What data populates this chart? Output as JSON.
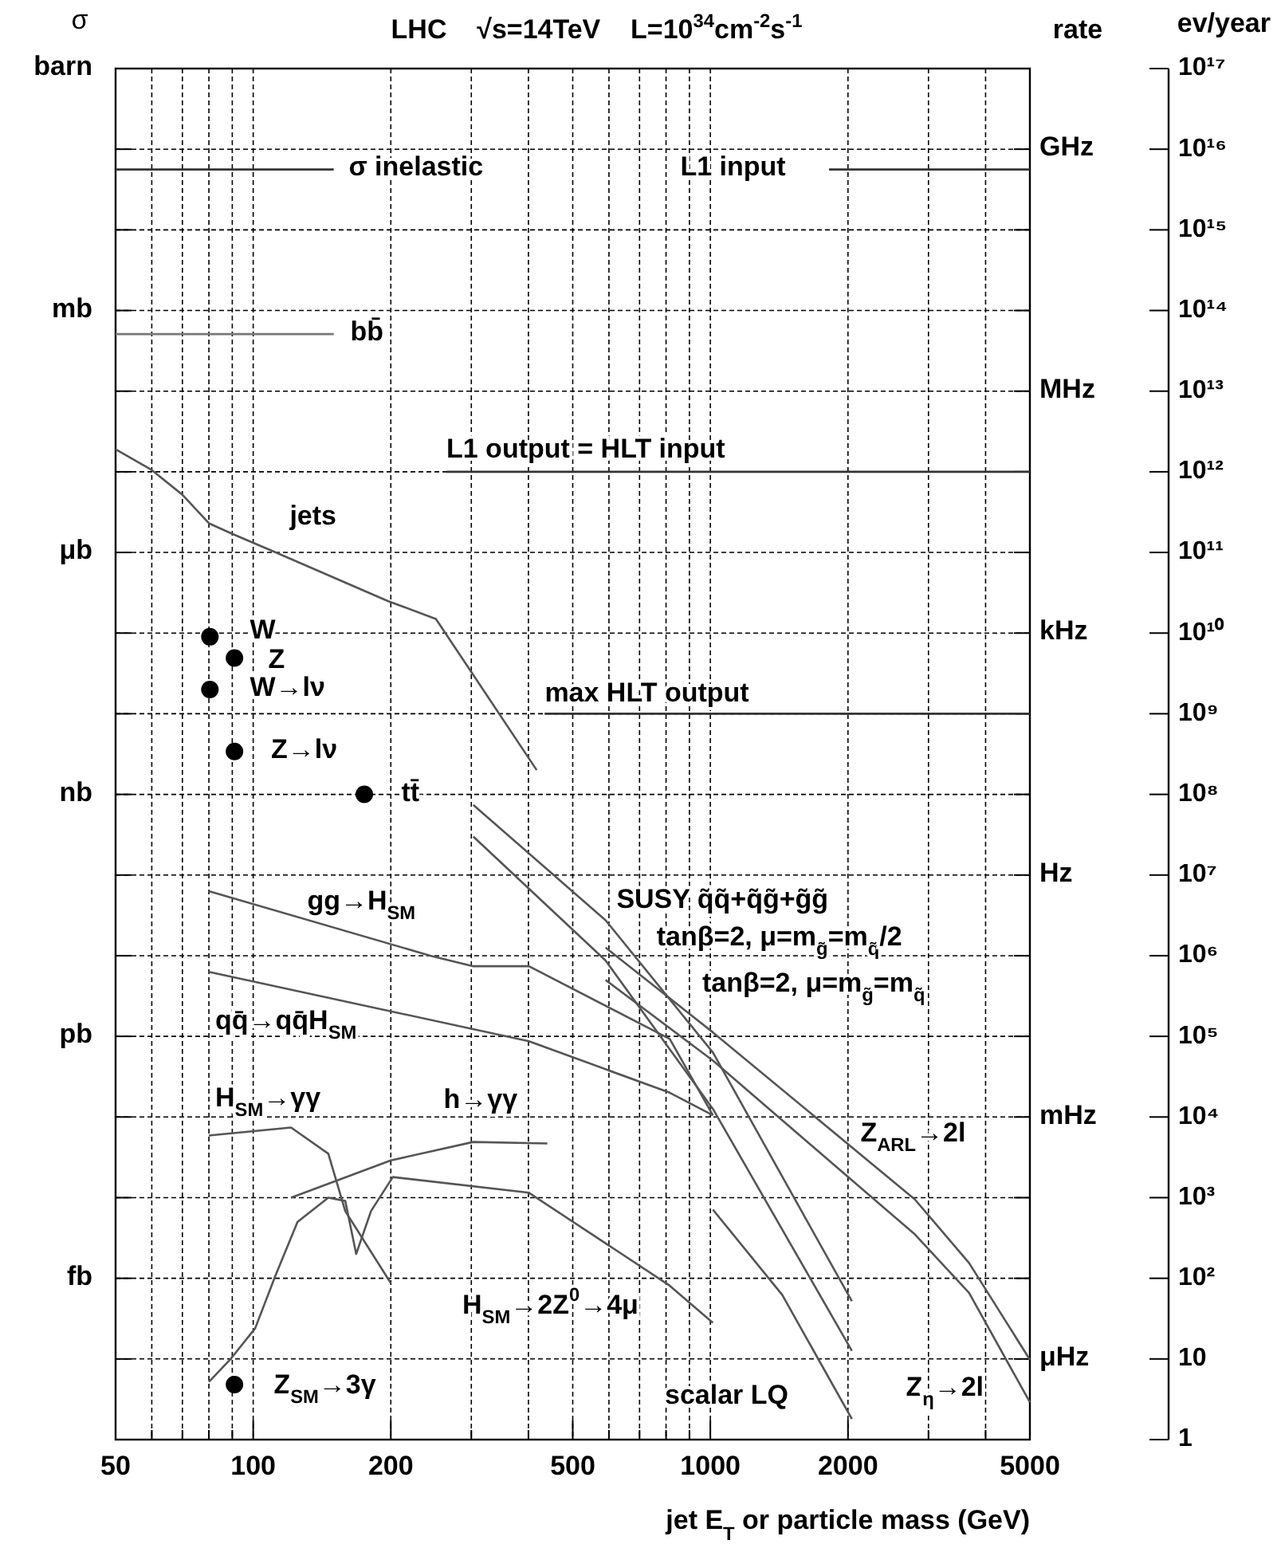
{
  "chart_data": {
    "type": "line",
    "title": "LHC    √s=14TeV    L=10$^{34}$cm$^{-2}$s$^{-1}$",
    "ylabel": "ev/year",
    "xlabel": "jet E$_{T}$ or particle mass (GeV)",
    "log": "xy",
    "grid": true,
    "xlim": [
      50,
      5000
    ],
    "xticks": [
      50,
      {
        "value": 60,
        "label": null
      },
      {
        "value": 70,
        "label": null
      },
      {
        "value": 80,
        "label": null
      },
      {
        "value": 90,
        "label": null
      },
      100,
      200,
      {
        "value": 300,
        "label": null
      },
      {
        "value": 400,
        "label": null
      },
      500,
      {
        "value": 600,
        "label": null
      },
      {
        "value": 700,
        "label": null
      },
      {
        "value": 800,
        "label": null
      },
      {
        "value": 900,
        "label": null
      },
      1000,
      2000,
      {
        "value": 3000,
        "label": null
      },
      {
        "value": 4000,
        "label": null
      },
      5000
    ],
    "ylim": [
      1,
      1e+17
    ],
    "yticks": [
      {
        "value": 1e+17,
        "label": "10¹⁷"
      },
      {
        "value": 1e+16,
        "label": "10¹⁶"
      },
      {
        "value": 1000000000000000.0,
        "label": "10¹⁵"
      },
      {
        "value": 100000000000000.0,
        "label": "10¹⁴"
      },
      {
        "value": 10000000000000.0,
        "label": "10¹³"
      },
      {
        "value": 1000000000000.0,
        "label": "10¹²"
      },
      {
        "value": 100000000000.0,
        "label": "10¹¹"
      },
      {
        "value": 10000000000.0,
        "label": "10¹⁰"
      },
      {
        "value": 1000000000.0,
        "label": "10⁹"
      },
      {
        "value": 100000000.0,
        "label": "10⁸"
      },
      {
        "value": 10000000.0,
        "label": "10⁷"
      },
      {
        "value": 1000000.0,
        "label": "10⁶"
      },
      {
        "value": 100000.0,
        "label": "10⁵"
      },
      {
        "value": 10000.0,
        "label": "10⁴"
      },
      {
        "value": 1000.0,
        "label": "10³"
      },
      {
        "value": 100.0,
        "label": "10²"
      },
      10,
      1
    ],
    "series": [
      {
        "color": "#333333",
        "x": [
          50,
          150
        ],
        "values": [
          5600000000000000.0,
          5600000000000000.0
        ]
      },
      {
        "color": "#333333",
        "x": [
          1818,
          5000
        ],
        "values": [
          5600000000000000.0,
          5600000000000000.0
        ]
      },
      {
        "color": "#777777",
        "x": [
          50,
          150
        ],
        "values": [
          51000000000000.0,
          51000000000000.0
        ]
      },
      {
        "color": "#333333",
        "x": [
          265,
          5000
        ],
        "values": [
          1000000000000.0,
          1000000000000.0
        ]
      },
      {
        "color": "#333333",
        "x": [
          434,
          5000
        ],
        "values": [
          1000000000.0,
          1000000000.0
        ]
      },
      {
        "color": "#555555",
        "x": [
          50,
          60,
          70,
          80,
          90,
          112,
          197,
          251,
          300,
          417
        ],
        "values": [
          1900000000000.0,
          1050000000000.0,
          520000000000.0,
          230000000000.0,
          170000000000.0,
          100000000000.0,
          25000000000.0,
          15000000000.0,
          3300000000.0,
          200000000.0
        ]
      },
      {
        "color": "#555555",
        "x": [
          80,
          244,
          303,
          401,
          815,
          1013
        ],
        "values": [
          6300000.0,
          1000000.0,
          740000.0,
          740000.0,
          93000.0,
          10500.0
        ]
      },
      {
        "color": "#555555",
        "x": [
          80,
          401,
          815,
          1013
        ],
        "values": [
          630000.0,
          87000.0,
          20000.0,
          10500.0
        ]
      },
      {
        "color": "#555555",
        "x": [
          80,
          121,
          146,
          159,
          200
        ],
        "values": [
          5900,
          7400,
          3500,
          680,
          87
        ]
      },
      {
        "color": "#555555",
        "x": [
          80,
          89,
          101,
          112,
          125,
          146,
          159,
          168,
          181,
          202,
          401,
          815,
          1013
        ],
        "values": [
          5.2,
          9.8,
          24,
          110,
          500,
          1000,
          910,
          200,
          680,
          1800,
          1150,
          81,
          28
        ]
      },
      {
        "color": "#555555",
        "x": [
          121,
          200,
          303,
          440
        ],
        "values": [
          1000,
          2900,
          4900,
          4700
        ]
      },
      {
        "color": "#555555",
        "x": [
          303,
          590,
          1013,
          2040
        ],
        "values": [
          74000000.0,
          2750000.0,
          63000.0,
          52
        ]
      },
      {
        "color": "#555555",
        "x": [
          303,
          590,
          1013,
          2040
        ],
        "values": [
          30000000.0,
          870000.0,
          12600.0,
          12.6
        ]
      },
      {
        "color": "#555555",
        "x": [
          590,
          1013,
          2802,
          3680,
          5000
        ],
        "values": [
          1260000.0,
          112000.0,
          950,
          155,
          9.8
        ]
      },
      {
        "color": "#555555",
        "x": [
          590,
          1013,
          2802,
          3680,
          5000
        ],
        "values": [
          500000.0,
          50000.0,
          350,
          66,
          2.9
        ]
      },
      {
        "color": "#555555",
        "x": [
          1013,
          1437,
          2040
        ],
        "values": [
          710,
          62,
          1.8
        ]
      },
      {
        "type": "scatter",
        "marker": "circle",
        "color": "#000000",
        "x": [
          80.4,
          91,
          80.4,
          91,
          175,
          91
        ],
        "values": [
          9000000000.0,
          4900000000.0,
          2000000000.0,
          340000000.0,
          100000000.0,
          4.8
        ]
      }
    ],
    "annotations": [
      "σ inelastic",
      "L1 input",
      "bb̄",
      "L1 output = HLT input",
      "jets",
      "W",
      "Z",
      "W→lν",
      "Z→lν",
      "tt̄",
      "max HLT output",
      "gg→H$_{SM}$",
      "qq̄→qq̄H$_{SM}$",
      "H$_{SM}$→γγ",
      "h→γγ",
      "H$_{SM}$→2Z$^{0}$→4μ",
      "Z$_{SM}$→3γ",
      "SUSY q̃q̃+q̃g̃+g̃g̃",
      "tanβ=2, μ=m$_{g̃}$=m$_{q̃}$/2",
      "tanβ=2, μ=m$_{g̃}$=m$_{q̃}$",
      "Z$_{ARL}$→2l",
      "scalar LQ",
      "Z$_{η}$→2l",
      "σ",
      "barn",
      "mb",
      "μb",
      "nb",
      "pb",
      "fb",
      "rate",
      "GHz",
      "MHz",
      "kHz",
      "Hz",
      "mHz",
      "μHz"
    ]
  }
}
